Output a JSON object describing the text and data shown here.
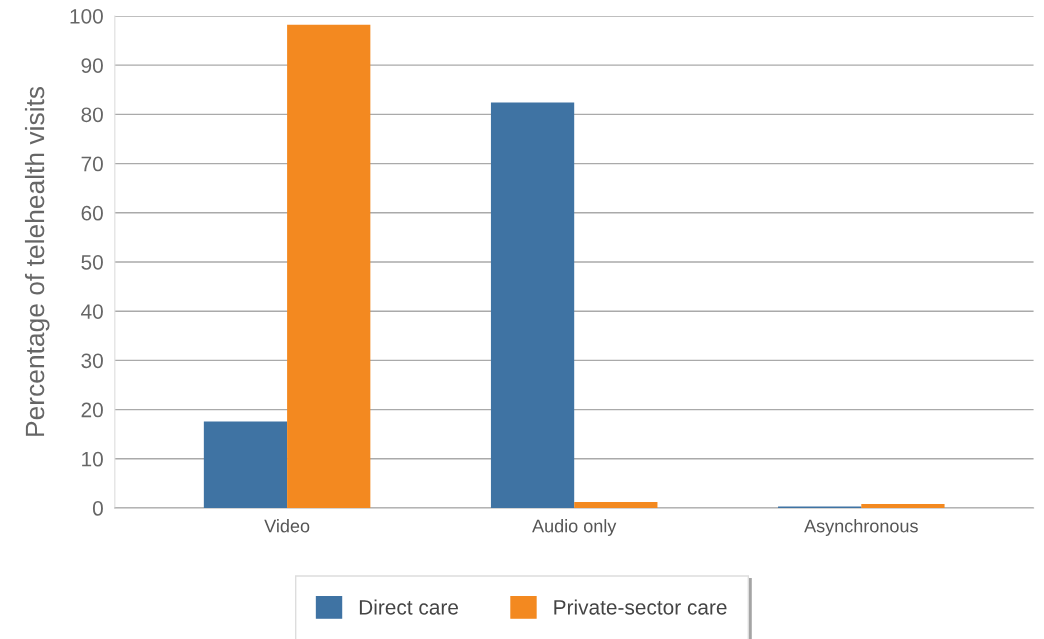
{
  "chart_data": {
    "type": "bar",
    "ylabel": "Percentage of telehealth visits",
    "categories": [
      "Video",
      "Audio only",
      "Asynchronous"
    ],
    "series": [
      {
        "name": "Direct care",
        "color": "#3f73a3",
        "values": [
          17.6,
          82.4,
          0.3
        ]
      },
      {
        "name": "Private-sector care",
        "color": "#f38920",
        "values": [
          98.2,
          1.2,
          0.8
        ]
      }
    ],
    "ylim": [
      0,
      100
    ],
    "yticks": [
      0,
      10,
      20,
      30,
      40,
      50,
      60,
      70,
      80,
      90,
      100
    ],
    "grid": "y",
    "legend": "bottom"
  }
}
